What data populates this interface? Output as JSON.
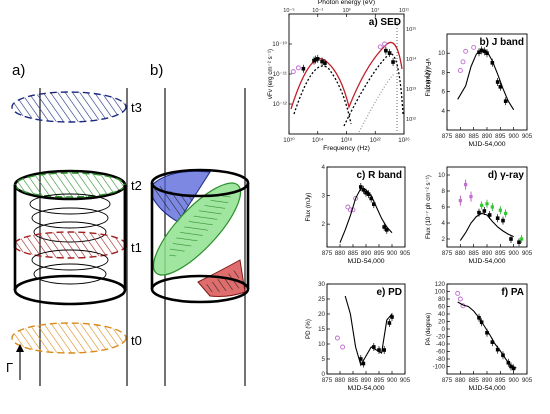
{
  "schematic": {
    "label_a": "a)",
    "label_b": "b)",
    "gamma": "Γ",
    "times": [
      "t3",
      "t2",
      "t1",
      "t0"
    ]
  },
  "chart_data": [
    {
      "id": "sed",
      "type": "scatter",
      "panel_label": "a)",
      "title": "SED",
      "xlabel": "Frequency (Hz)",
      "ylabel": "νFν (erg cm⁻² s⁻¹)",
      "top_xlabel": "Photon energy (eV)",
      "right_ylabel": "νFν (Jy Hz)",
      "xscale": "log",
      "yscale": "log",
      "xlim": [
        10000000000.0,
        1e+26
      ],
      "ylim": [
        1e-13,
        1e-09
      ],
      "xticks": [
        "10¹⁰",
        "10¹⁴",
        "10¹⁸",
        "10²²",
        "10²⁶"
      ],
      "yticks": [
        "10⁻¹²",
        "10⁻¹¹",
        "10⁻¹⁰"
      ],
      "top_ticks": [
        "10⁻⁵",
        "10⁻¹",
        "10³",
        "10⁷",
        "10¹¹"
      ],
      "right_ticks": [
        "10¹⁵",
        "10¹⁴",
        "10¹³",
        "10¹²"
      ],
      "series": [
        {
          "values": [
            [
              1000000000000.0,
              1.5e-11
            ],
            [
              30000000000000.0,
              2.8e-11
            ],
            [
              50000000000000.0,
              3e-11
            ],
            [
              100000000000000.0,
              3.2e-11
            ],
            [
              400000000000000.0,
              2.6e-11
            ],
            [
              1000000000000000.0,
              2.3e-11
            ],
            [
              3e+23,
              6e-11
            ],
            [
              1e+24,
              5e-11
            ],
            [
              3e+24,
              2.5e-11
            ]
          ]
        },
        {
          "values": [
            [
              40000000000.0,
              1.2e-11
            ],
            [
              200000000000.0,
              1.6e-11
            ],
            [
              5e+22,
              8e-11
            ],
            [
              2e+23,
              1e-10
            ]
          ]
        }
      ]
    },
    {
      "id": "jband",
      "type": "line",
      "panel_label": "b)",
      "title": "J band",
      "xlabel": "MJD-54,000",
      "ylabel": "Flux (mJy)",
      "xlim": [
        875,
        905
      ],
      "ylim": [
        2,
        12
      ],
      "xticks": [
        "875",
        "880",
        "885",
        "890",
        "895",
        "900",
        "905"
      ],
      "yticks": [
        "4",
        "6",
        "8",
        "10"
      ],
      "series": [
        {
          "x": [
            887,
            888,
            889,
            890,
            892,
            894,
            895,
            897
          ],
          "values": [
            10.1,
            10.3,
            10.2,
            10.0,
            9.0,
            7.0,
            6.5,
            5.0
          ]
        },
        {
          "x": [
            880,
            881,
            882,
            885
          ],
          "values": [
            8.2,
            9.1,
            10.2,
            10.6
          ]
        },
        {
          "x": [
            879,
            882,
            884,
            886,
            888,
            890,
            892,
            894,
            896,
            898,
            900
          ],
          "values": [
            5.2,
            6.6,
            8.6,
            9.9,
            10.4,
            10.2,
            9.2,
            7.8,
            6.3,
            5.0,
            4.1
          ]
        }
      ]
    },
    {
      "id": "rband",
      "type": "line",
      "panel_label": "c)",
      "title": "R band",
      "xlabel": "MJD-54,000",
      "ylabel": "Flux (mJy)",
      "xlim": [
        875,
        905
      ],
      "ylim": [
        1.2,
        4
      ],
      "xticks": [
        "875",
        "880",
        "885",
        "890",
        "895",
        "900",
        "905"
      ],
      "yticks": [
        "2",
        "3",
        "4"
      ],
      "series": [
        {
          "x": [
            888,
            889,
            890,
            891,
            892,
            893,
            897,
            898
          ],
          "values": [
            3.3,
            3.2,
            3.1,
            3.05,
            2.9,
            2.7,
            1.9,
            1.8
          ]
        },
        {
          "x": [
            883,
            884,
            885,
            886
          ],
          "values": [
            2.6,
            2.5,
            2.5,
            2.9
          ]
        },
        {
          "x": [
            880,
            882,
            884,
            886,
            888,
            890,
            892,
            894,
            896,
            898,
            900
          ],
          "values": [
            1.35,
            1.8,
            2.3,
            2.9,
            3.25,
            3.2,
            3.0,
            2.6,
            2.2,
            1.9,
            1.7
          ]
        }
      ]
    },
    {
      "id": "gamma",
      "type": "line",
      "panel_label": "d)",
      "title": "γ-ray",
      "xlabel": "MJD-54,000",
      "ylabel": "Flux (10⁻⁷ ph cm⁻² s⁻¹)",
      "xlim": [
        875,
        905
      ],
      "ylim": [
        1,
        11
      ],
      "xticks": [
        "875",
        "880",
        "885",
        "890",
        "895",
        "900",
        "905"
      ],
      "yticks": [
        "2",
        "4",
        "6",
        "8",
        "10"
      ],
      "series": [
        {
          "x": [
            887,
            889,
            891,
            894,
            896,
            899,
            902
          ],
          "values": [
            5.3,
            5.5,
            5.0,
            4.6,
            4.3,
            2.0,
            1.6
          ]
        },
        {
          "x": [
            880,
            882,
            884
          ],
          "values": [
            6.8,
            8.8,
            7.3
          ]
        },
        {
          "x": [
            888,
            890,
            892,
            895,
            897,
            903
          ],
          "values": [
            6.2,
            6.4,
            6.0,
            5.6,
            5.2,
            2.0
          ]
        },
        {
          "x": [
            880,
            882,
            884,
            886,
            888,
            890,
            892,
            894,
            896,
            898,
            900
          ],
          "values": [
            1.8,
            2.8,
            4.0,
            4.8,
            5.2,
            5.0,
            4.2,
            3.5,
            3.0,
            2.6,
            2.3
          ]
        }
      ]
    },
    {
      "id": "pd",
      "type": "line",
      "panel_label": "e)",
      "title": "PD",
      "xlabel": "MJD-54,000",
      "ylabel": "PD (%)",
      "xlim": [
        875,
        905
      ],
      "ylim": [
        0,
        30
      ],
      "xticks": [
        "875",
        "880",
        "885",
        "890",
        "895",
        "900",
        "905"
      ],
      "yticks": [
        "0",
        "5",
        "10",
        "15",
        "20",
        "25",
        "30"
      ],
      "series": [
        {
          "x": [
            888,
            889,
            893,
            895,
            897,
            899,
            900
          ],
          "values": [
            5,
            3.5,
            9,
            8,
            8,
            17,
            19
          ]
        },
        {
          "x": [
            879,
            881
          ],
          "values": [
            12,
            9
          ]
        },
        {
          "x": [
            882,
            884,
            886,
            888,
            890,
            892,
            894,
            896,
            898,
            900
          ],
          "values": [
            26,
            20,
            9,
            3,
            6,
            9,
            8,
            7,
            18,
            20
          ]
        }
      ]
    },
    {
      "id": "pa",
      "type": "line",
      "panel_label": "f)",
      "title": "PA",
      "xlabel": "MJD-54,000",
      "ylabel": "PA (degree)",
      "xlim": [
        875,
        905
      ],
      "ylim": [
        -120,
        120
      ],
      "xticks": [
        "875",
        "880",
        "885",
        "890",
        "895",
        "900",
        "905"
      ],
      "yticks": [
        "-100",
        "-80",
        "-60",
        "-40",
        "-20",
        "0",
        "20",
        "40",
        "60",
        "80",
        "100",
        "120"
      ],
      "series": [
        {
          "x": [
            887,
            888,
            890,
            892,
            894,
            896,
            898,
            899,
            900
          ],
          "values": [
            30,
            18,
            -10,
            -35,
            -55,
            -70,
            -90,
            -100,
            -105
          ]
        },
        {
          "x": [
            879,
            880,
            881
          ],
          "values": [
            95,
            80,
            62
          ]
        },
        {
          "x": [
            879,
            881,
            883,
            885,
            887,
            889,
            891,
            893,
            895,
            897,
            899,
            901
          ],
          "values": [
            72,
            64,
            60,
            48,
            30,
            8,
            -15,
            -40,
            -58,
            -80,
            -98,
            -104
          ]
        }
      ]
    }
  ]
}
